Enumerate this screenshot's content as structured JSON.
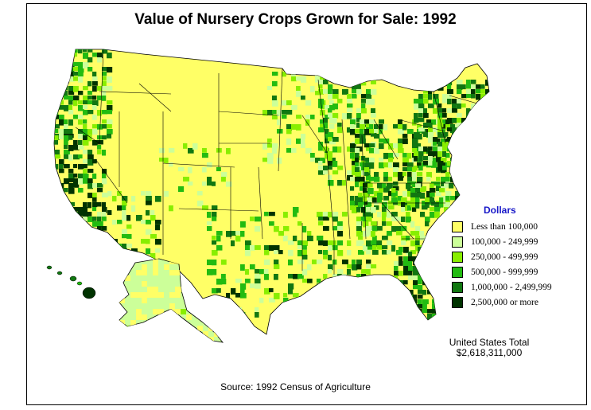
{
  "title": "Value of Nursery Crops Grown for Sale:  1992",
  "legend": {
    "title": "Dollars",
    "items": [
      {
        "label": "Less than 100,000",
        "color": "#ffff66"
      },
      {
        "label": "100,000 - 249,999",
        "color": "#ccff99"
      },
      {
        "label": "250,000 - 499,999",
        "color": "#88ee00"
      },
      {
        "label": "500,000 - 999,999",
        "color": "#22bb11"
      },
      {
        "label": "1,000,000 - 2,499,999",
        "color": "#117711"
      },
      {
        "label": "2,500,000 or more",
        "color": "#003300"
      }
    ]
  },
  "total": {
    "label": "United States Total",
    "value": "$2,618,311,000"
  },
  "source": "Source:  1992 Census of Agriculture"
}
